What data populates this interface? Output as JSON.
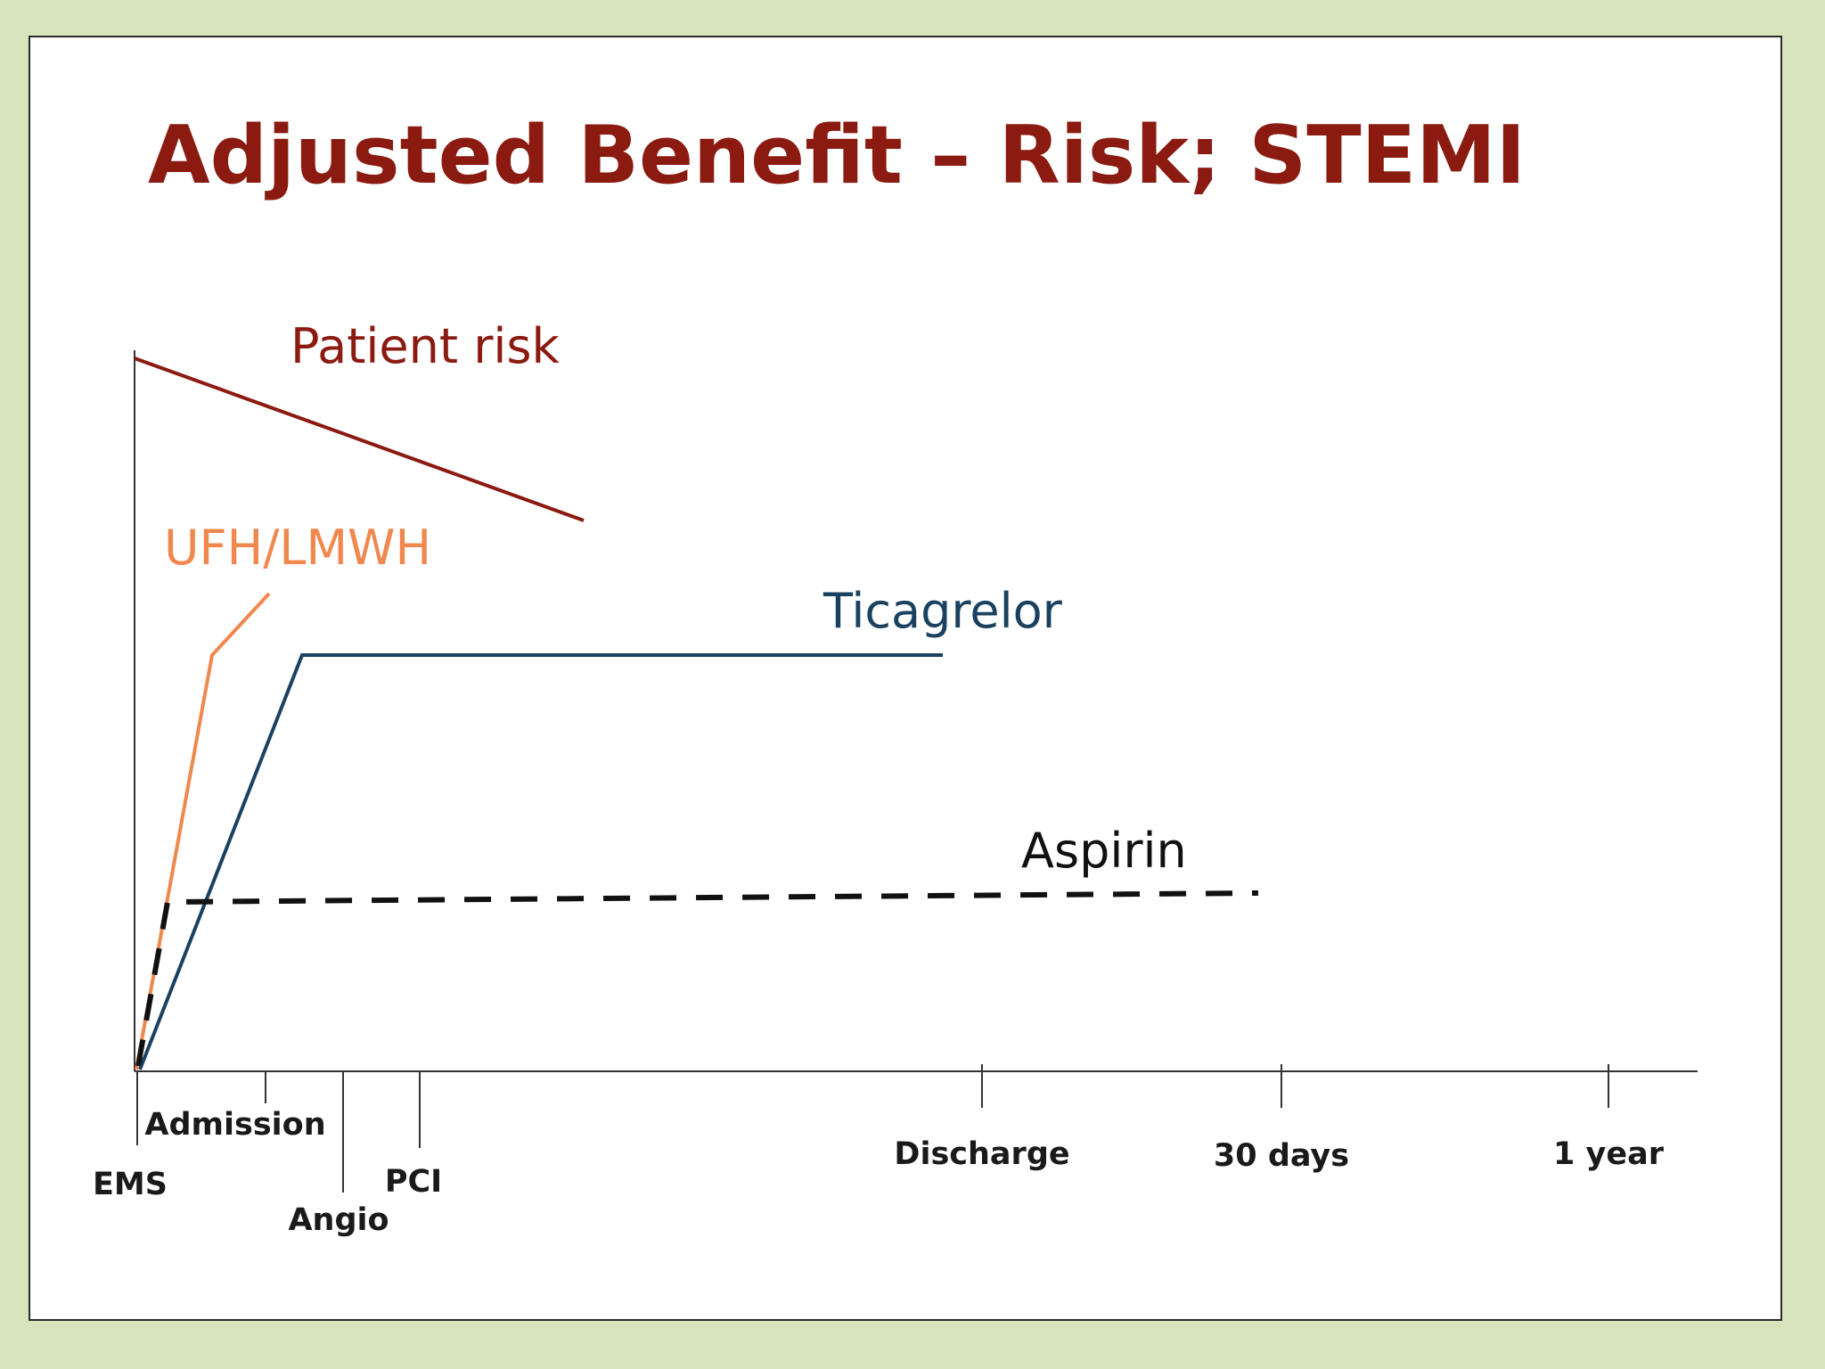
{
  "slide": {
    "title": "Adjusted Benefit – Risk; STEMI",
    "colors": {
      "background": "#d8e4bc",
      "title": "#8b1a10",
      "patient_risk": "#8b1a10",
      "ufh_lmwh": "#f0884e",
      "ticagrelor": "#1a4260",
      "aspirin": "#111111",
      "axis": "#333333"
    }
  },
  "chart_data": {
    "type": "line",
    "title": "Adjusted Benefit – Risk; STEMI",
    "xlabel": "",
    "ylabel": "",
    "grid": false,
    "x_ticks": [
      "EMS",
      "Admission",
      "Angio",
      "PCI",
      "Discharge",
      "30 days",
      "1 year"
    ],
    "series": [
      {
        "name": "Patient risk",
        "style": "solid"
      },
      {
        "name": "UFH/LMWH",
        "style": "solid"
      },
      {
        "name": "Ticagrelor",
        "style": "solid"
      },
      {
        "name": "Aspirin",
        "style": "dashed"
      }
    ]
  }
}
